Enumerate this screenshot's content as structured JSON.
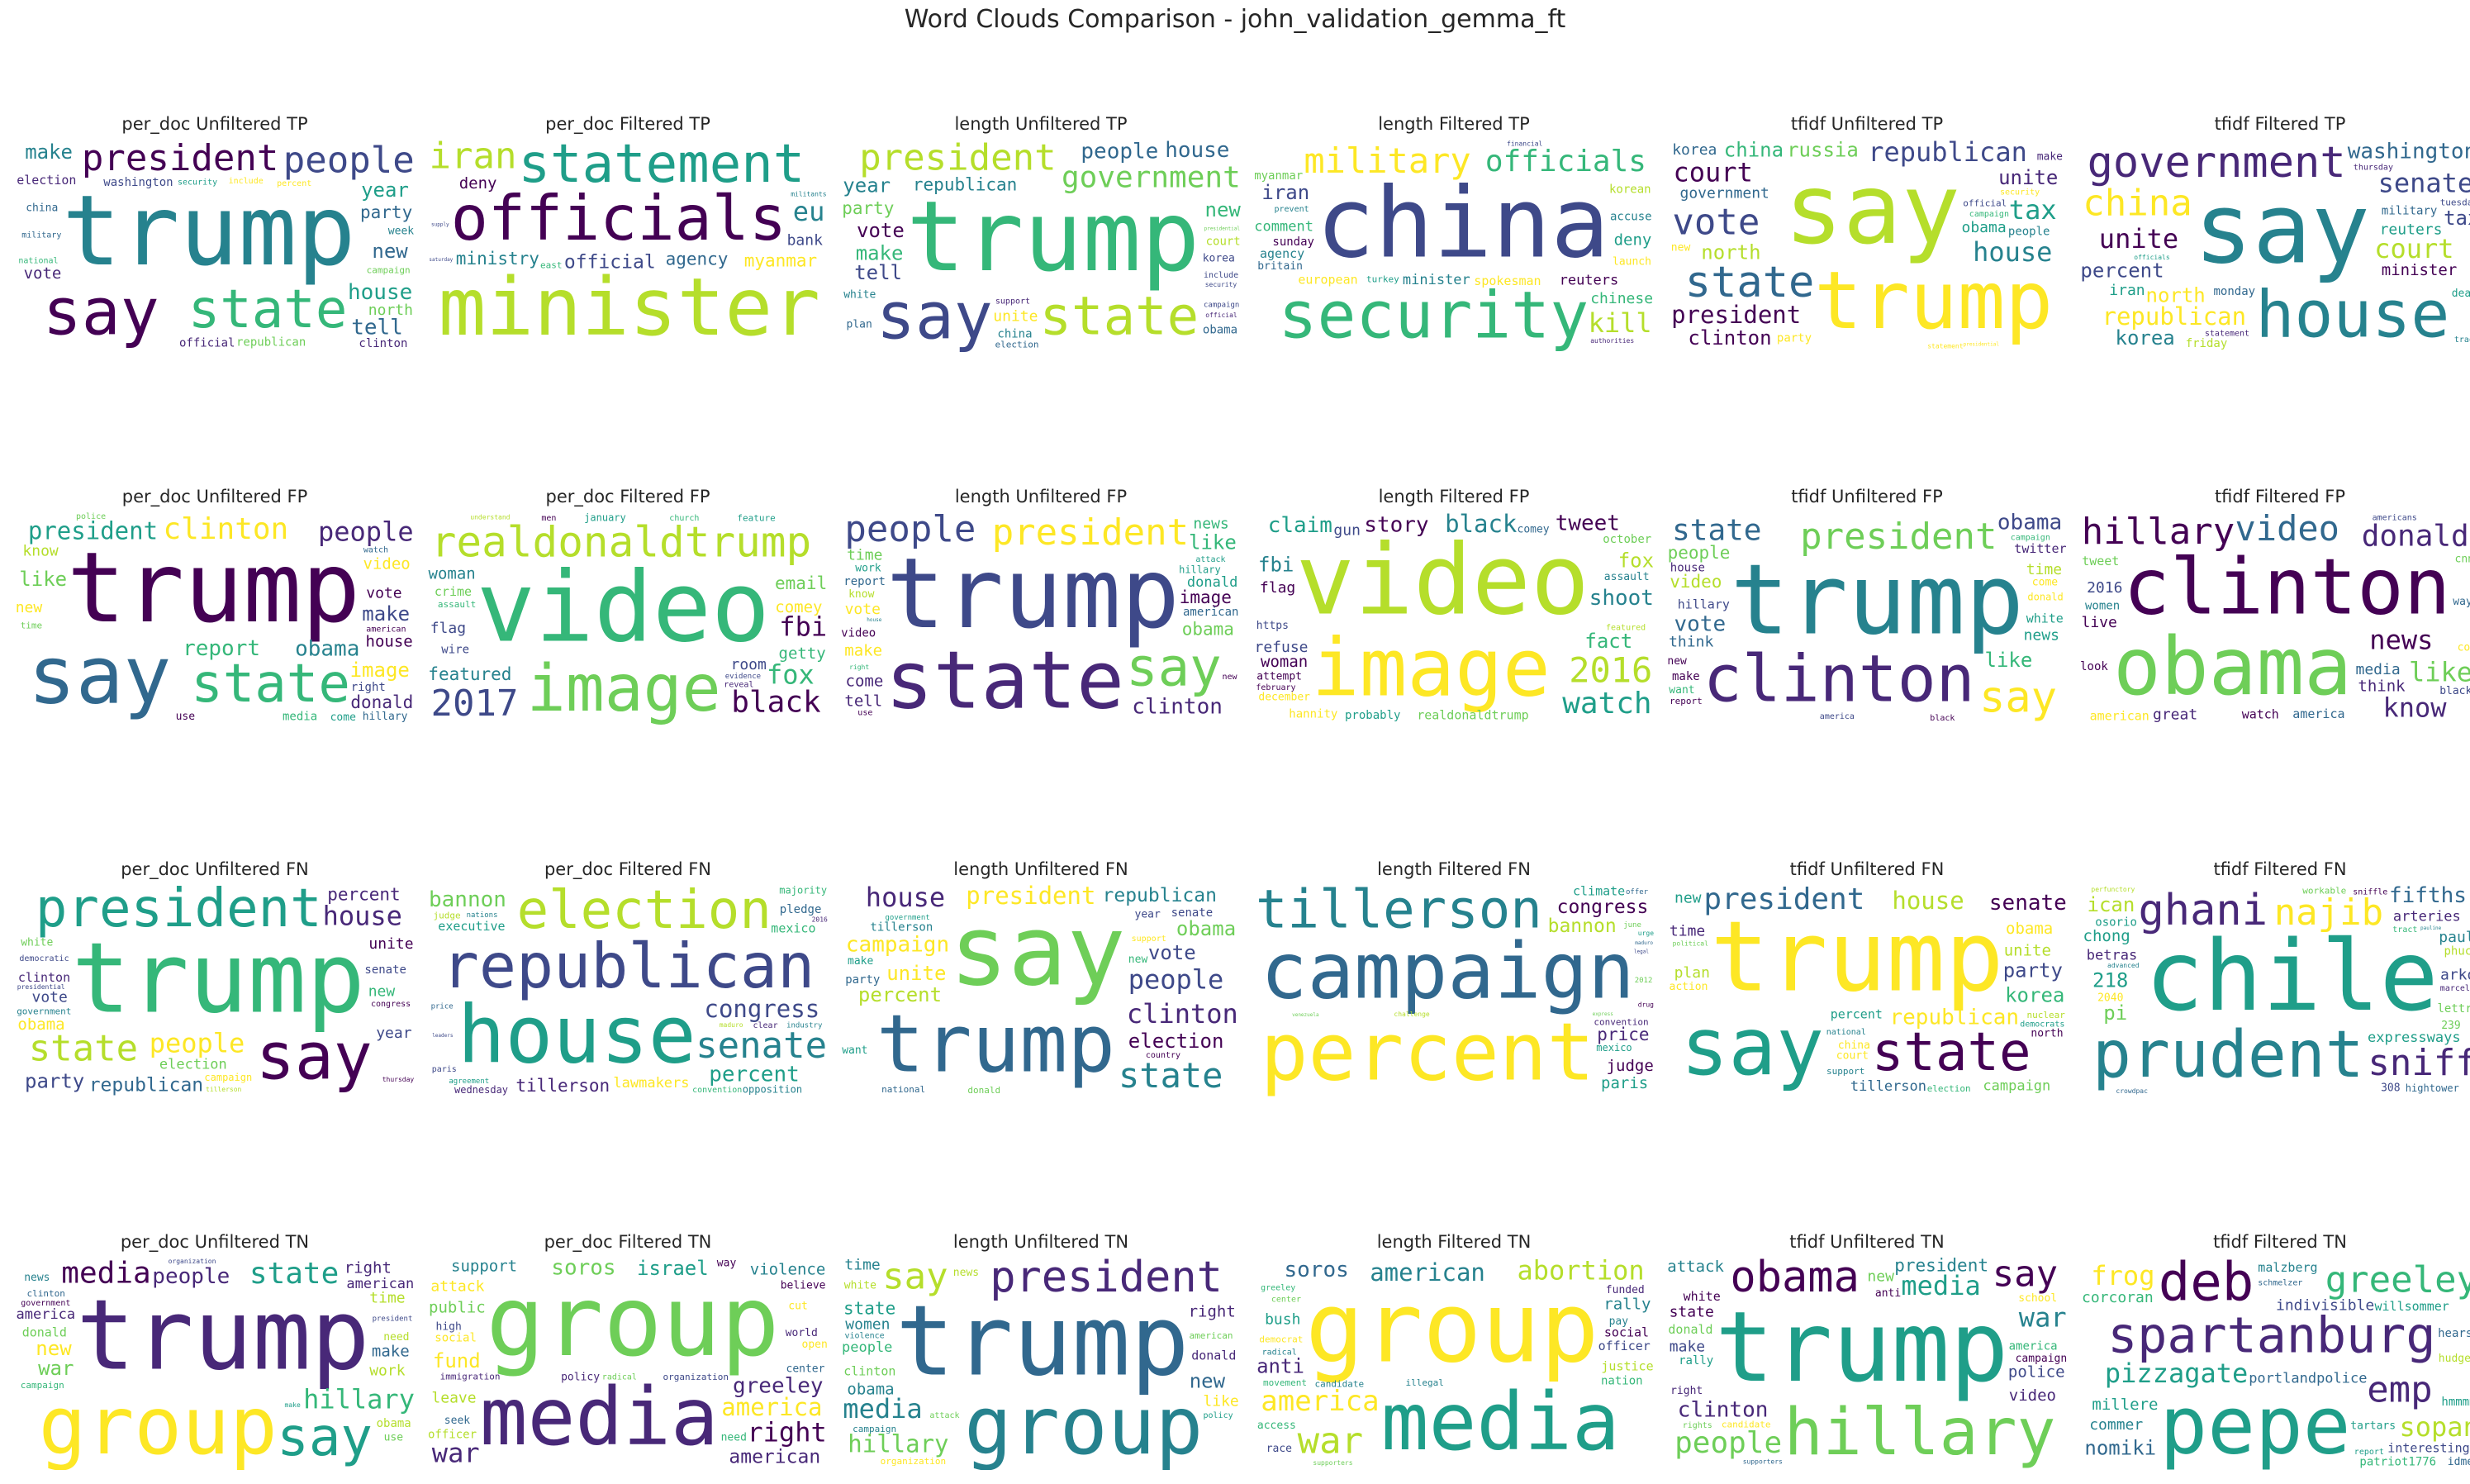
{
  "title": "Word Clouds Comparison - john_validation_gemma_ft",
  "palette": [
    "#440154",
    "#482878",
    "#3e4989",
    "#31688e",
    "#26828e",
    "#1f9e89",
    "#35b779",
    "#6ece58",
    "#b5de2b",
    "#fde725"
  ],
  "panels": [
    {
      "title": "per_doc Unfiltered TP",
      "words": [
        "trump",
        "say",
        "state",
        "president",
        "people",
        "government",
        "party",
        "house",
        "tell",
        "election",
        "new",
        "make",
        "year",
        "vote",
        "clinton",
        "official",
        "republican",
        "washington",
        "campaign",
        "north",
        "china",
        "week",
        "include",
        "national",
        "percent",
        "military",
        "security"
      ]
    },
    {
      "title": "per_doc Filtered TP",
      "words": [
        "officials",
        "minister",
        "statement",
        "official",
        "iran",
        "eu",
        "ministry",
        "myanmar",
        "agency",
        "deny",
        "britain",
        "european",
        "accuse",
        "sunday",
        "bank",
        "senior",
        "commission",
        "east",
        "kurdish",
        "brexit",
        "saturday",
        "operations",
        "militants",
        "supply"
      ]
    },
    {
      "title": "length Unfiltered TP",
      "words": [
        "trump",
        "say",
        "state",
        "president",
        "government",
        "people",
        "house",
        "republican",
        "party",
        "tell",
        "new",
        "year",
        "vote",
        "make",
        "unite",
        "election",
        "court",
        "campaign",
        "obama",
        "china",
        "korea",
        "plan",
        "security",
        "official",
        "presidential",
        "white",
        "include",
        "support"
      ]
    },
    {
      "title": "length Filtered TP",
      "words": [
        "china",
        "security",
        "military",
        "officials",
        "statement",
        "minister",
        "kill",
        "reuters",
        "comment",
        "spokesman",
        "iran",
        "european",
        "deny",
        "agency",
        "chinese",
        "sunday",
        "myanmar",
        "accuse",
        "korean",
        "turkey",
        "financial",
        "launch",
        "authorities",
        "prevent",
        "britain"
      ]
    },
    {
      "title": "tfidf Unfiltered TP",
      "words": [
        "say",
        "trump",
        "state",
        "president",
        "vote",
        "republican",
        "tax",
        "house",
        "court",
        "russia",
        "unite",
        "china",
        "north",
        "clinton",
        "government",
        "people",
        "party",
        "korea",
        "obama",
        "official",
        "campaign",
        "security",
        "make",
        "new",
        "presidential",
        "statement"
      ]
    },
    {
      "title": "tfidf Filtered TP",
      "words": [
        "say",
        "house",
        "government",
        "republican",
        "china",
        "washington",
        "court",
        "senate",
        "unite",
        "korea",
        "north",
        "percent",
        "tax",
        "minister",
        "reuters",
        "military",
        "iran",
        "friday",
        "monday",
        "tuesday",
        "thursday",
        "statement",
        "trade",
        "deal",
        "officials"
      ]
    },
    {
      "title": "per_doc Unfiltered FP",
      "words": [
        "trump",
        "say",
        "state",
        "clinton",
        "president",
        "people",
        "donald",
        "obama",
        "report",
        "image",
        "video",
        "make",
        "like",
        "house",
        "new",
        "vote",
        "know",
        "time",
        "media",
        "right",
        "american",
        "hillary",
        "come",
        "watch",
        "police",
        "use"
      ]
    },
    {
      "title": "per_doc Filtered FP",
      "words": [
        "video",
        "image",
        "realdonaldtrump",
        "black",
        "2017",
        "fox",
        "email",
        "fbi",
        "featured",
        "getty",
        "january",
        "woman",
        "comey",
        "crime",
        "feature",
        "flag",
        "evidence",
        "room",
        "assault",
        "wire",
        "reveal",
        "men",
        "church",
        "understand"
      ]
    },
    {
      "title": "length Unfiltered FP",
      "words": [
        "trump",
        "state",
        "say",
        "president",
        "people",
        "clinton",
        "image",
        "obama",
        "donald",
        "like",
        "hillary",
        "make",
        "come",
        "tell",
        "american",
        "video",
        "time",
        "vote",
        "news",
        "report",
        "know",
        "right",
        "attack",
        "work",
        "use",
        "house",
        "new"
      ]
    },
    {
      "title": "length Filtered FP",
      "words": [
        "video",
        "image",
        "2016",
        "black",
        "watch",
        "claim",
        "tweet",
        "story",
        "shoot",
        "fact",
        "fbi",
        "realdonaldtrump",
        "woman",
        "fox",
        "refuse",
        "flag",
        "gun",
        "probably",
        "hannity",
        "october",
        "december",
        "attempt",
        "comey",
        "assault",
        "february",
        "featured",
        "https"
      ]
    },
    {
      "title": "tfidf Unfiltered FP",
      "words": [
        "trump",
        "clinton",
        "say",
        "president",
        "state",
        "obama",
        "video",
        "people",
        "vote",
        "like",
        "twitter",
        "hillary",
        "donald",
        "white",
        "news",
        "make",
        "think",
        "house",
        "time",
        "report",
        "black",
        "want",
        "america",
        "campaign",
        "new",
        "come"
      ]
    },
    {
      "title": "tfidf Filtered FP",
      "words": [
        "clinton",
        "obama",
        "video",
        "hillary",
        "donald",
        "know",
        "news",
        "like",
        "twitter",
        "think",
        "watch",
        "tweet",
        "american",
        "america",
        "2016",
        "women",
        "media",
        "look",
        "live",
        "great",
        "black",
        "com",
        "americans",
        "way",
        "cnn"
      ]
    },
    {
      "title": "per_doc Unfiltered FN",
      "words": [
        "trump",
        "say",
        "president",
        "state",
        "republican",
        "people",
        "house",
        "percent",
        "election",
        "party",
        "obama",
        "clinton",
        "campaign",
        "washington",
        "vote",
        "new",
        "unite",
        "government",
        "year",
        "senate",
        "white",
        "democratic",
        "tillerson",
        "congress",
        "thursday",
        "presidential"
      ]
    },
    {
      "title": "per_doc Filtered FN",
      "words": [
        "republican",
        "house",
        "election",
        "senate",
        "congress",
        "percent",
        "tillerson",
        "lawmakers",
        "bannon",
        "wednesday",
        "executive",
        "majority",
        "opposition",
        "mexico",
        "judge",
        "pledge",
        "agreement",
        "price",
        "nations",
        "industry",
        "convention",
        "leaders",
        "paris",
        "2016",
        "maduro",
        "clear"
      ]
    },
    {
      "title": "length Unfiltered FN",
      "words": [
        "say",
        "trump",
        "state",
        "president",
        "republican",
        "clinton",
        "campaign",
        "house",
        "people",
        "election",
        "obama",
        "percent",
        "vote",
        "unite",
        "tillerson",
        "party",
        "senate",
        "government",
        "donald",
        "national",
        "year",
        "make",
        "want",
        "country",
        "support",
        "new"
      ]
    },
    {
      "title": "length Filtered FN",
      "words": [
        "campaign",
        "percent",
        "tillerson",
        "congress",
        "bannon",
        "nuclear",
        "price",
        "lawmakers",
        "opposition",
        "judge",
        "climate",
        "majority",
        "mexico",
        "paris",
        "evidence",
        "convention",
        "offer",
        "june",
        "2012",
        "rule",
        "drug",
        "legal",
        "challenge",
        "maduro",
        "venezuela",
        "urge",
        "express"
      ]
    },
    {
      "title": "tfidf Unfiltered FN",
      "words": [
        "trump",
        "say",
        "state",
        "president",
        "house",
        "republican",
        "senate",
        "campaign",
        "tillerson",
        "korea",
        "obama",
        "percent",
        "party",
        "unite",
        "plan",
        "election",
        "nuclear",
        "new",
        "time",
        "support",
        "china",
        "court",
        "democrats",
        "action",
        "national",
        "north",
        "political"
      ]
    },
    {
      "title": "tfidf Filtered FN",
      "words": [
        "chile",
        "prudent",
        "ghani",
        "najib",
        "sniff",
        "fifths",
        "expressways",
        "arteries",
        "betras",
        "chong",
        "hightower",
        "pi",
        "218",
        "ican",
        "lettre",
        "arko",
        "paul",
        "osorio",
        "phuc",
        "workable",
        "crowdpac",
        "marcel",
        "308",
        "239",
        "2040",
        "perfunctory",
        "pauline",
        "sniffle",
        "tract",
        "advanced"
      ]
    },
    {
      "title": "per_doc Unfiltered TN",
      "words": [
        "trump",
        "group",
        "say",
        "media",
        "state",
        "hillary",
        "people",
        "america",
        "american",
        "new",
        "war",
        "right",
        "make",
        "donald",
        "clinton",
        "obama",
        "president",
        "time",
        "campaign",
        "work",
        "government",
        "organization",
        "news",
        "use",
        "need",
        "make"
      ]
    },
    {
      "title": "per_doc Filtered TN",
      "words": [
        "group",
        "media",
        "hillary",
        "america",
        "american",
        "right",
        "war",
        "soros",
        "greeley",
        "israel",
        "violence",
        "support",
        "fund",
        "public",
        "organization",
        "officer",
        "leave",
        "immigration",
        "attack",
        "social",
        "center",
        "seek",
        "policy",
        "believe",
        "world",
        "high",
        "radical",
        "open",
        "cut",
        "need",
        "way"
      ]
    },
    {
      "title": "length Unfiltered TN",
      "words": [
        "trump",
        "group",
        "president",
        "hillary",
        "say",
        "media",
        "people",
        "state",
        "america",
        "right",
        "donald",
        "new",
        "obama",
        "clinton",
        "organization",
        "women",
        "campaign",
        "time",
        "like",
        "american",
        "attack",
        "policy",
        "white",
        "violence",
        "news"
      ]
    },
    {
      "title": "length Filtered TN",
      "words": [
        "group",
        "media",
        "america",
        "american",
        "war",
        "abortion",
        "organization",
        "soros",
        "violence",
        "rally",
        "anti",
        "officer",
        "social",
        "justice",
        "democrat",
        "nation",
        "movement",
        "candidate",
        "illegal",
        "bush",
        "supporters",
        "pay",
        "race",
        "greeley",
        "funded",
        "radical",
        "center",
        "access"
      ]
    },
    {
      "title": "tfidf Unfiltered TN",
      "words": [
        "trump",
        "hillary",
        "obama",
        "say",
        "people",
        "media",
        "clinton",
        "president",
        "war",
        "attack",
        "donald",
        "video",
        "police",
        "white",
        "america",
        "state",
        "rally",
        "candidate",
        "new",
        "make",
        "right",
        "school",
        "anti",
        "rights",
        "supporters",
        "campaign"
      ]
    },
    {
      "title": "tfidf Filtered TN",
      "words": [
        "spartanburg",
        "pepe",
        "deb",
        "greeley",
        "emp",
        "pizzagate",
        "frog",
        "portlandpolice",
        "sopan",
        "interesting",
        "millere",
        "nomiki",
        "malzberg",
        "willsommer",
        "indivisible",
        "corcoran",
        "hearst",
        "patriot1776",
        "commer",
        "hmmmm",
        "schmelzer",
        "hudges",
        "idme",
        "tartars",
        "report"
      ]
    }
  ]
}
